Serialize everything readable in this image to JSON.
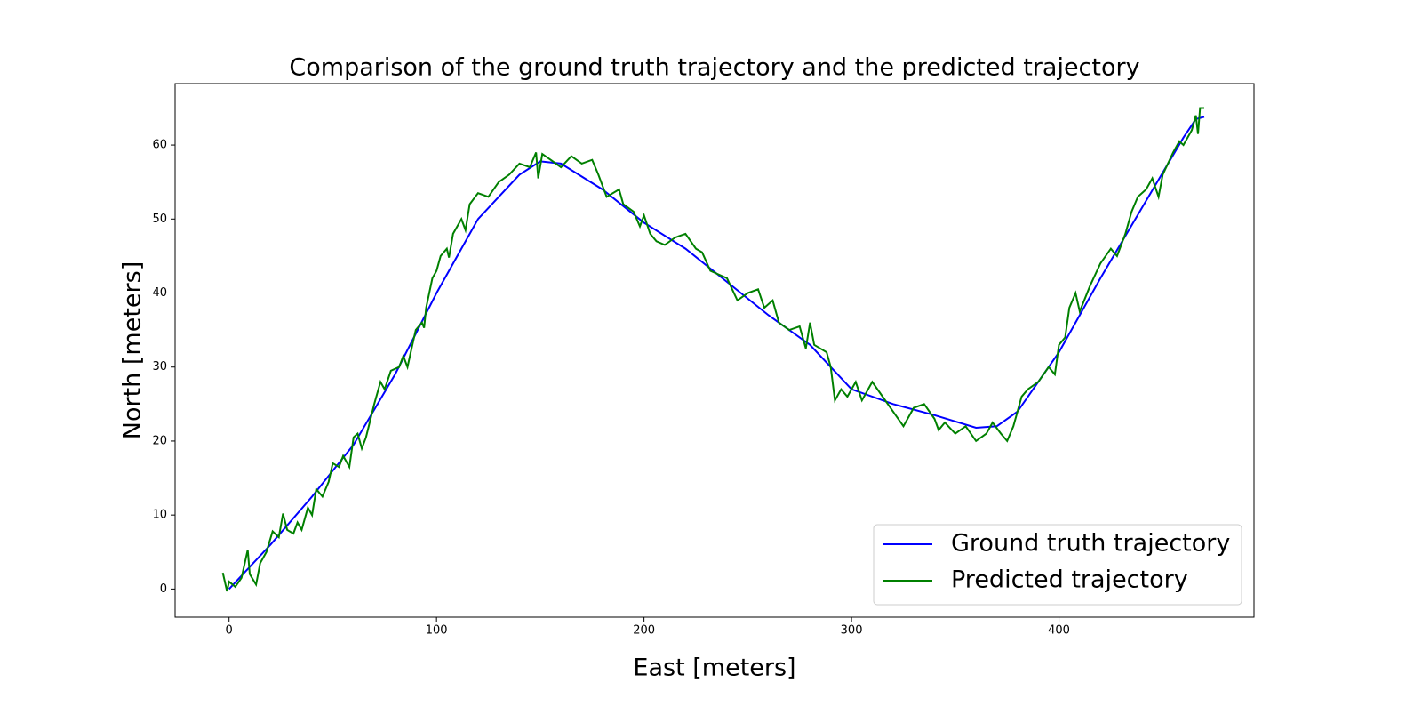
{
  "chart_data": {
    "type": "line",
    "title": "Comparison of the ground truth trajectory and the predicted trajectory",
    "x_label": "East [meters]",
    "y_label": "North [meters]",
    "xlim": [
      -26,
      494
    ],
    "ylim": [
      -3.8,
      68.3
    ],
    "xticks": [
      0,
      100,
      200,
      300,
      400
    ],
    "yticks": [
      0,
      10,
      20,
      30,
      40,
      50,
      60
    ],
    "grid": false,
    "legend": "lower right",
    "series": [
      {
        "name": "Ground truth trajectory",
        "color": "#0000ff",
        "x": [
          0,
          20,
          40,
          60,
          80,
          100,
          120,
          140,
          150,
          160,
          180,
          200,
          220,
          240,
          260,
          280,
          300,
          320,
          340,
          360,
          370,
          380,
          400,
          420,
          440,
          460,
          466,
          470
        ],
        "values": [
          0,
          6,
          12.5,
          19.5,
          29,
          40,
          50,
          56,
          57.8,
          57.5,
          54,
          49.5,
          46,
          41.5,
          37,
          33,
          27,
          25,
          23.5,
          21.8,
          22,
          24,
          32,
          42,
          51.5,
          61,
          63.5,
          63.8
        ]
      },
      {
        "name": "Predicted trajectory",
        "color": "#008000",
        "x": [
          -3,
          -1,
          0,
          3,
          6,
          9,
          10,
          13,
          15,
          18,
          21,
          24,
          26,
          28,
          31,
          33,
          35,
          38,
          40,
          42,
          45,
          48,
          50,
          53,
          55,
          58,
          60,
          62,
          64,
          66,
          70,
          73,
          75,
          78,
          82,
          84,
          86,
          88,
          90,
          93,
          94,
          95,
          98,
          100,
          102,
          105,
          106,
          108,
          112,
          114,
          116,
          120,
          125,
          130,
          135,
          140,
          145,
          148,
          149,
          151,
          155,
          160,
          165,
          170,
          175,
          178,
          182,
          188,
          190,
          195,
          198,
          200,
          203,
          206,
          210,
          215,
          220,
          225,
          228,
          232,
          240,
          245,
          250,
          255,
          258,
          262,
          265,
          270,
          275,
          278,
          280,
          282,
          288,
          290,
          292,
          295,
          298,
          302,
          305,
          310,
          315,
          320,
          325,
          330,
          335,
          340,
          342,
          345,
          350,
          355,
          360,
          365,
          368,
          372,
          375,
          378,
          382,
          385,
          390,
          395,
          398,
          400,
          403,
          405,
          408,
          410,
          415,
          420,
          425,
          428,
          432,
          435,
          438,
          442,
          445,
          448,
          450,
          455,
          458,
          460,
          464,
          466,
          467,
          468,
          470
        ],
        "values": [
          2.2,
          -0.3,
          1,
          0.3,
          1.5,
          5.3,
          2,
          0.6,
          3.5,
          5,
          7.8,
          7,
          10.2,
          8,
          7.5,
          9,
          8,
          11,
          10,
          13.5,
          12.5,
          14.5,
          17,
          16.5,
          18,
          16.5,
          20.5,
          21,
          19,
          20.5,
          25,
          28,
          27,
          29.5,
          30,
          31.5,
          30,
          32.5,
          35,
          36,
          35.3,
          38,
          42,
          43,
          45,
          46,
          44.8,
          48,
          50,
          48.5,
          52,
          53.5,
          53,
          55,
          56,
          57.5,
          57,
          59,
          55.5,
          58.8,
          58,
          57,
          58.5,
          57.5,
          58,
          56,
          53,
          54,
          52,
          51,
          49,
          50.5,
          48,
          47,
          46.5,
          47.5,
          48,
          46,
          45.5,
          43,
          42,
          39,
          40,
          40.5,
          38,
          39,
          36,
          35,
          35.5,
          32.5,
          36,
          33,
          32,
          30,
          25.5,
          27,
          26,
          28,
          25.5,
          28,
          26,
          24,
          22,
          24.5,
          25,
          23,
          21.5,
          22.5,
          21,
          22,
          20,
          21,
          22.5,
          21,
          20,
          22,
          26,
          27,
          28,
          30,
          29,
          33,
          34,
          38,
          40,
          37.5,
          41,
          44,
          46,
          45,
          48,
          51,
          53,
          54,
          55.5,
          53,
          56,
          59,
          60.5,
          60,
          62,
          64,
          61.5,
          65,
          65
        ]
      }
    ]
  }
}
